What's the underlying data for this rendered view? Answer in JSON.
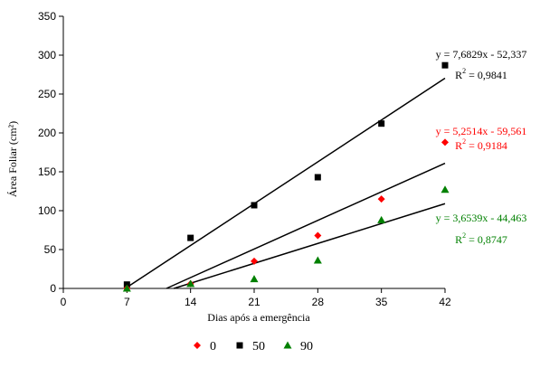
{
  "chart_data": {
    "type": "scatter",
    "xlabel": "Dias após a emergência",
    "ylabel": "Área Foliar (cm²)",
    "xlim": [
      0,
      42
    ],
    "ylim": [
      0,
      350
    ],
    "x_ticks": [
      "0",
      "7",
      "14",
      "21",
      "28",
      "35",
      "42"
    ],
    "y_ticks": [
      "0",
      "50",
      "100",
      "150",
      "200",
      "250",
      "300",
      "350"
    ],
    "grid": false,
    "legend_position": "bottom",
    "series": [
      {
        "name": "0",
        "color": "#ff0000",
        "marker": "diamond",
        "points": [
          [
            7,
            0
          ],
          [
            14,
            6
          ],
          [
            21,
            35
          ],
          [
            28,
            68
          ],
          [
            35,
            115
          ],
          [
            42,
            188
          ]
        ],
        "trend": {
          "slope": 5.2514,
          "intercept": -59.561
        },
        "equation": "y = 5,2514x - 59,561",
        "r2_prefix": "R",
        "r2_exp": "2",
        "r2_value": " = 0,9184"
      },
      {
        "name": "50",
        "color": "#000000",
        "marker": "square",
        "points": [
          [
            7,
            5
          ],
          [
            14,
            65
          ],
          [
            21,
            107
          ],
          [
            28,
            143
          ],
          [
            35,
            212
          ],
          [
            42,
            287
          ]
        ],
        "trend": {
          "slope": 7.6829,
          "intercept": -52.337
        },
        "equation": "y = 7,6829x - 52,337",
        "r2_prefix": "R",
        "r2_exp": "2",
        "r2_value": " = 0,9841"
      },
      {
        "name": "90",
        "color": "#008000",
        "marker": "triangle",
        "points": [
          [
            7,
            0
          ],
          [
            14,
            6
          ],
          [
            21,
            12
          ],
          [
            28,
            36
          ],
          [
            35,
            88
          ],
          [
            42,
            127
          ]
        ],
        "trend": {
          "slope": 3.6539,
          "intercept": -44.463
        },
        "equation": "y = 3,6539x - 44,463",
        "r2_prefix": "R",
        "r2_exp": "2",
        "r2_value": " = 0,8747"
      }
    ]
  }
}
